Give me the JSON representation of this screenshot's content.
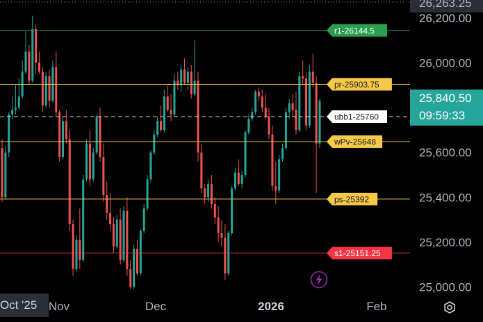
{
  "chart_data": {
    "type": "candlestick",
    "title": "",
    "xlabel": "",
    "ylabel": "",
    "ylim": [
      24980,
      26280
    ],
    "price_ticks": [
      "26,200.00",
      "26,000.00",
      "25,600.00",
      "25,400.00",
      "25,200.00",
      "25,000.00"
    ],
    "price_tick_values": [
      26200,
      26000,
      25600,
      25400,
      25200,
      25000
    ],
    "top_partial_label": "26,263.25",
    "time_ticks": [
      "Nov",
      "Dec",
      "2026",
      "Feb"
    ],
    "time_tick_bold": [
      false,
      false,
      true,
      false
    ],
    "date_label": "Oct '25",
    "current_price": "25,840.50",
    "countdown": "09:59:33",
    "candles": [
      [
        25620,
        25660,
        25380,
        25400
      ],
      [
        25400,
        25630,
        25390,
        25600
      ],
      [
        25600,
        25780,
        25580,
        25770
      ],
      [
        25770,
        25850,
        25750,
        25790
      ],
      [
        25790,
        25900,
        25770,
        25800
      ],
      [
        25800,
        25930,
        25790,
        25850
      ],
      [
        25850,
        26010,
        25840,
        25960
      ],
      [
        25960,
        26140,
        25950,
        26050
      ],
      [
        26050,
        26080,
        25900,
        25920
      ],
      [
        25920,
        26210,
        25910,
        26150
      ],
      [
        26150,
        26170,
        25950,
        26000
      ],
      [
        26000,
        26050,
        25950,
        25960
      ],
      [
        25960,
        25980,
        25780,
        25810
      ],
      [
        25810,
        25960,
        25800,
        25940
      ],
      [
        25940,
        25970,
        25800,
        25830
      ],
      [
        25830,
        26010,
        25820,
        25980
      ],
      [
        25980,
        26050,
        25760,
        25780
      ],
      [
        25780,
        25790,
        25560,
        25580
      ],
      [
        25580,
        25760,
        25570,
        25740
      ],
      [
        25740,
        25790,
        25640,
        25660
      ],
      [
        25660,
        25700,
        25250,
        25280
      ],
      [
        25280,
        25300,
        25050,
        25080
      ],
      [
        25080,
        25230,
        25070,
        25210
      ],
      [
        25210,
        25350,
        25080,
        25120
      ],
      [
        25120,
        25500,
        25110,
        25480
      ],
      [
        25480,
        25660,
        25470,
        25640
      ],
      [
        25640,
        25700,
        25450,
        25480
      ],
      [
        25480,
        25620,
        25470,
        25600
      ],
      [
        25600,
        25770,
        25590,
        25760
      ],
      [
        25760,
        25800,
        25560,
        25580
      ],
      [
        25580,
        25640,
        25380,
        25410
      ],
      [
        25410,
        25470,
        25300,
        25330
      ],
      [
        25330,
        25420,
        25250,
        25280
      ],
      [
        25280,
        25310,
        25150,
        25180
      ],
      [
        25180,
        25320,
        25170,
        25300
      ],
      [
        25300,
        25350,
        25100,
        25120
      ],
      [
        25120,
        25360,
        25110,
        25340
      ],
      [
        25340,
        25400,
        25050,
        25080
      ],
      [
        25080,
        25120,
        24990,
        25000
      ],
      [
        25000,
        25190,
        24990,
        25170
      ],
      [
        25170,
        25210,
        25050,
        25060
      ],
      [
        25060,
        25260,
        25050,
        25250
      ],
      [
        25250,
        25370,
        25240,
        25350
      ],
      [
        25350,
        25500,
        25340,
        25480
      ],
      [
        25480,
        25610,
        25470,
        25600
      ],
      [
        25600,
        25700,
        25590,
        25680
      ],
      [
        25680,
        25760,
        25670,
        25740
      ],
      [
        25740,
        25810,
        25690,
        25700
      ],
      [
        25700,
        25880,
        25690,
        25850
      ],
      [
        25850,
        25900,
        25780,
        25790
      ],
      [
        25790,
        25860,
        25740,
        25770
      ],
      [
        25770,
        25950,
        25760,
        25920
      ],
      [
        25920,
        25960,
        25880,
        25900
      ],
      [
        25900,
        25990,
        25870,
        25970
      ],
      [
        25970,
        26020,
        25900,
        25910
      ],
      [
        25910,
        25980,
        25880,
        25960
      ],
      [
        25960,
        25990,
        25840,
        25860
      ],
      [
        25860,
        26100,
        25850,
        25920
      ],
      [
        25920,
        25960,
        25560,
        25600
      ],
      [
        25600,
        25640,
        25420,
        25440
      ],
      [
        25440,
        25460,
        25370,
        25400
      ],
      [
        25400,
        25480,
        25380,
        25460
      ],
      [
        25460,
        25500,
        25350,
        25370
      ],
      [
        25370,
        25400,
        25280,
        25310
      ],
      [
        25310,
        25360,
        25200,
        25240
      ],
      [
        25240,
        25300,
        25180,
        25220
      ],
      [
        25220,
        25280,
        25030,
        25060
      ],
      [
        25060,
        25250,
        25050,
        25240
      ],
      [
        25240,
        25450,
        25230,
        25440
      ],
      [
        25440,
        25530,
        25430,
        25510
      ],
      [
        25510,
        25570,
        25450,
        25460
      ],
      [
        25460,
        25520,
        25440,
        25500
      ],
      [
        25500,
        25700,
        25490,
        25690
      ],
      [
        25690,
        25770,
        25680,
        25750
      ],
      [
        25750,
        25800,
        25740,
        25780
      ],
      [
        25780,
        25880,
        25770,
        25870
      ],
      [
        25870,
        25890,
        25830,
        25850
      ],
      [
        25850,
        25880,
        25780,
        25800
      ],
      [
        25800,
        25860,
        25750,
        25760
      ],
      [
        25760,
        25800,
        25660,
        25680
      ],
      [
        25680,
        25720,
        25430,
        25450
      ],
      [
        25450,
        25560,
        25370,
        25430
      ],
      [
        25430,
        25590,
        25420,
        25570
      ],
      [
        25570,
        25640,
        25560,
        25620
      ],
      [
        25620,
        25800,
        25610,
        25780
      ],
      [
        25780,
        25840,
        25750,
        25820
      ],
      [
        25820,
        25860,
        25760,
        25790
      ],
      [
        25790,
        25870,
        25680,
        25700
      ],
      [
        25700,
        25960,
        25690,
        25940
      ],
      [
        25940,
        26010,
        25900,
        25930
      ],
      [
        25930,
        25960,
        25700,
        25720
      ],
      [
        25720,
        25990,
        25710,
        25960
      ],
      [
        25960,
        26040,
        25890,
        25910
      ],
      [
        25910,
        25940,
        25420,
        25640
      ],
      [
        25640,
        25840,
        25620,
        25830
      ]
    ],
    "levels": [
      {
        "name": "r1",
        "label": "r1-26144.5",
        "value": 26144.5,
        "color": "#2a9d4e",
        "text": "light",
        "line": "solid"
      },
      {
        "name": "pr",
        "label": "pr-25903.75",
        "value": 25903.75,
        "color": "#f7c948",
        "text": "dark",
        "line": "solid"
      },
      {
        "name": "ubb1",
        "label": "ubb1-25760",
        "value": 25760,
        "color": "#ffffff",
        "text": "dark",
        "line": "dashed"
      },
      {
        "name": "wPv",
        "label": "wPv-25648",
        "value": 25648,
        "color": "#f7c948",
        "text": "dark",
        "line": "solid"
      },
      {
        "name": "ps",
        "label": "ps-25392",
        "value": 25392,
        "color": "#f7c948",
        "text": "dark",
        "line": "solid"
      },
      {
        "name": "s1",
        "label": "s1-25151.25",
        "value": 25151.25,
        "color": "#f23645",
        "text": "light",
        "line": "solid"
      }
    ],
    "colors": {
      "up": "#26a69a",
      "down": "#ef5350",
      "background": "#000000",
      "price_box": "#26a69a",
      "pink": "#f23a6d",
      "green_tag": "#2a9d4e",
      "accent": "#9c27b0"
    }
  },
  "icons": {
    "settings": "settings-icon",
    "lightning": "lightning-icon"
  }
}
